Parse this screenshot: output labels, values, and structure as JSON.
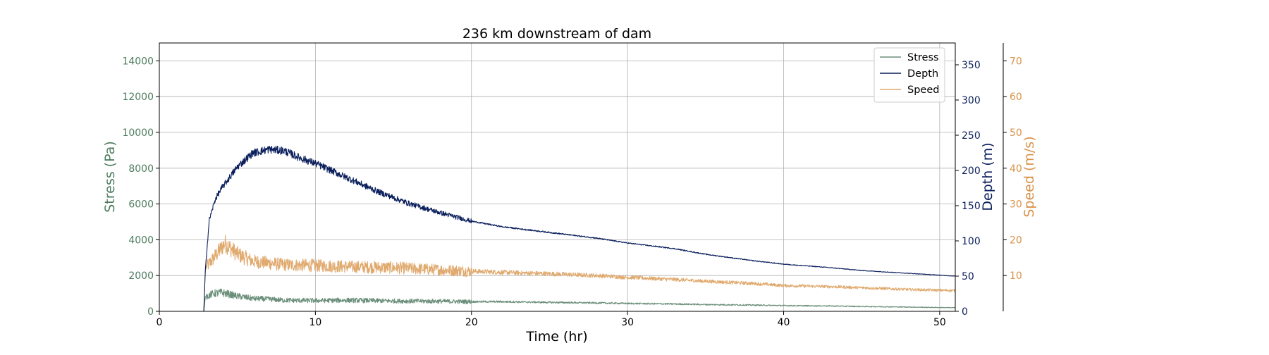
{
  "chart_data": {
    "type": "line",
    "title": "236 km downstream of dam",
    "xlabel": "Time (hr)",
    "xlim": [
      0,
      51
    ],
    "xticks": [
      0,
      10,
      20,
      30,
      40,
      50
    ],
    "grid": true,
    "legend_position": "top-right",
    "axes": {
      "left": {
        "label": "Stress (Pa)",
        "color": "#4e7d5f",
        "ylim": [
          0,
          15000
        ],
        "ticks": [
          0,
          2000,
          4000,
          6000,
          8000,
          10000,
          12000,
          14000
        ]
      },
      "right": {
        "label": "Depth (m)",
        "color": "#0b1f5c",
        "ylim": [
          0,
          381
        ],
        "ticks": [
          0,
          50,
          100,
          150,
          200,
          250,
          300,
          350
        ]
      },
      "right_outer": {
        "label": "Speed (m/s)",
        "color": "#d9934a",
        "ylim": [
          0,
          75
        ],
        "ticks": [
          10,
          20,
          30,
          40,
          50,
          60,
          70
        ]
      }
    },
    "series": [
      {
        "name": "Stress",
        "axis": "left",
        "color": "#6b8f7a",
        "x": [
          0,
          2.85,
          2.95,
          3.5,
          4.0,
          5.0,
          6.0,
          7.0,
          8.0,
          10.0,
          12.0,
          15.0,
          18.0,
          20.0,
          22.0,
          25.0,
          28.0,
          30.0,
          33.0,
          35.0,
          38.0,
          40.0,
          43.0,
          45.0,
          48.0,
          51.0
        ],
        "y": [
          0,
          0,
          820,
          1000,
          1050,
          850,
          720,
          680,
          620,
          600,
          620,
          580,
          560,
          540,
          540,
          500,
          470,
          440,
          410,
          380,
          350,
          320,
          300,
          270,
          240,
          200
        ]
      },
      {
        "name": "Depth",
        "axis": "right",
        "color": "#0b1f5c",
        "x": [
          0,
          2.85,
          2.95,
          3.2,
          3.6,
          4.0,
          5.0,
          6.0,
          7.0,
          8.0,
          9.0,
          10.0,
          12.0,
          14.0,
          16.0,
          18.0,
          20.0,
          22.0,
          25.0,
          28.0,
          30.0,
          33.0,
          35.0,
          38.0,
          40.0,
          43.0,
          45.0,
          48.0,
          51.0
        ],
        "y": [
          0,
          0,
          60,
          130,
          160,
          175,
          205,
          225,
          230,
          228,
          218,
          210,
          190,
          170,
          153,
          140,
          128,
          120,
          112,
          104,
          97,
          89,
          81,
          72,
          67,
          62,
          58,
          54,
          50
        ]
      },
      {
        "name": "Speed",
        "axis": "right_outer",
        "color": "#e0aa6f",
        "x": [
          0,
          2.85,
          2.95,
          3.5,
          4.2,
          5.0,
          6.0,
          8.0,
          10.0,
          12.0,
          15.0,
          18.0,
          20.0,
          22.0,
          25.0,
          28.0,
          30.0,
          33.0,
          35.0,
          38.0,
          40.0,
          43.0,
          45.0,
          48.0,
          51.0
        ],
        "y": [
          0,
          0,
          12,
          15,
          19,
          16,
          14,
          13,
          12.8,
          12.5,
          12.2,
          11.6,
          11.2,
          10.9,
          10.5,
          10.0,
          9.5,
          8.9,
          8.4,
          7.8,
          7.2,
          6.9,
          6.6,
          6.1,
          5.8
        ]
      }
    ]
  }
}
